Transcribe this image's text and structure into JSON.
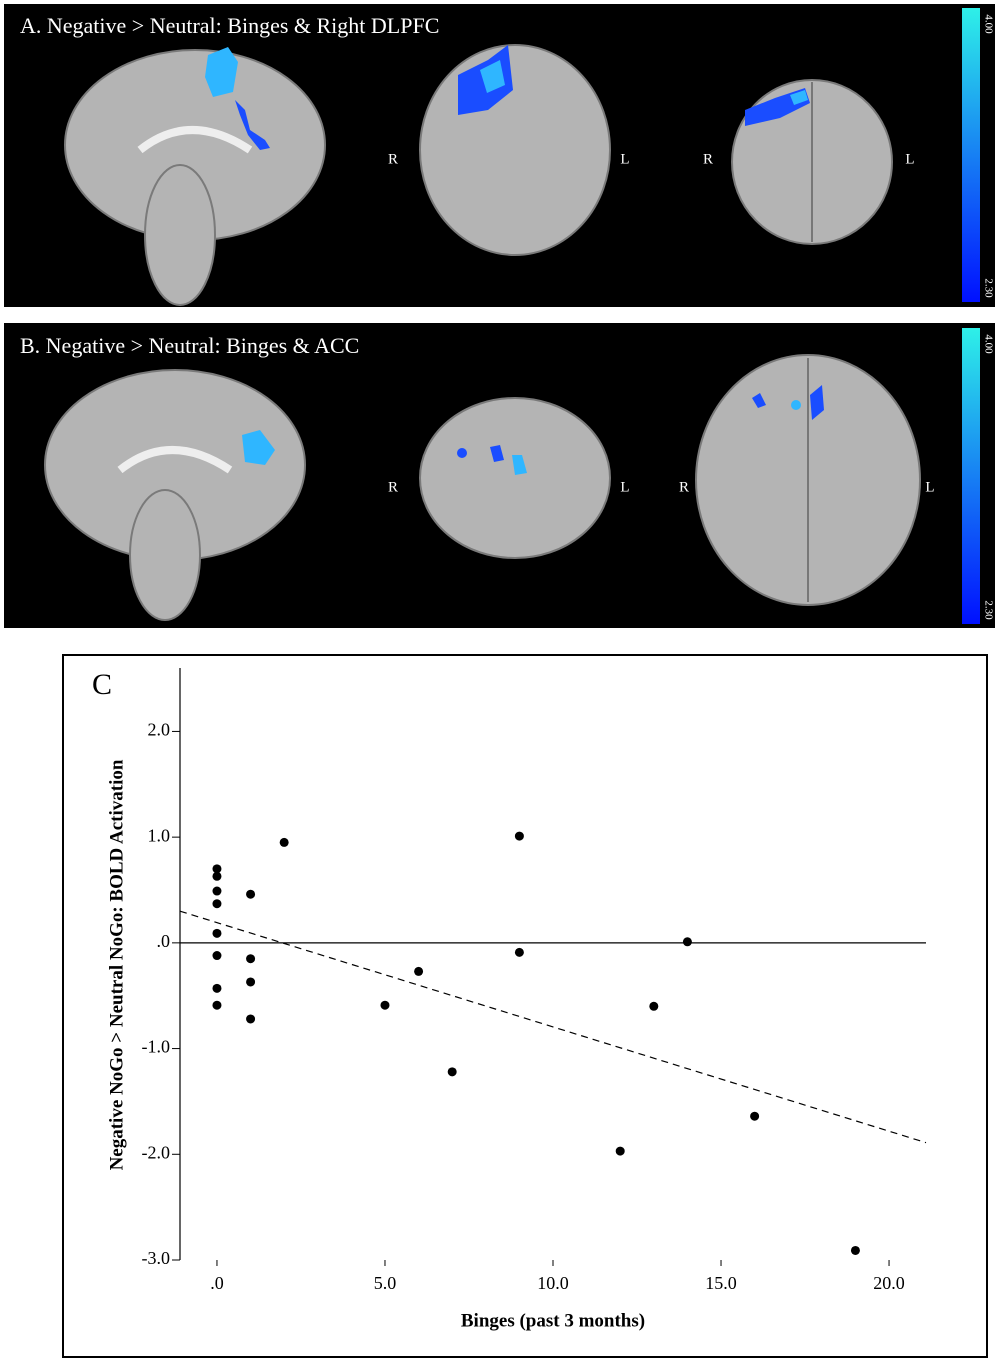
{
  "panels": [
    {
      "label": "A. Negative > Neutral: Binges & Right DLPFC",
      "orientation": [
        "R",
        "L",
        "R",
        "L"
      ],
      "colorbar": [
        "4.00",
        "2.30"
      ]
    },
    {
      "label": "B. Negative > Neutral: Binges & ACC",
      "orientation": [
        "R",
        "L",
        "R",
        "L"
      ],
      "colorbar": [
        "4.00",
        "2.30"
      ]
    }
  ],
  "chart_data": {
    "type": "scatter",
    "title": "C",
    "x_label": "Binges (past 3 months)",
    "y_label": "Negative NoGo > Neutral NoGo: BOLD Activation",
    "x": [
      0,
      0,
      0,
      0,
      0,
      0,
      0,
      0,
      1,
      1,
      1,
      1,
      2,
      9,
      9,
      5,
      6,
      7,
      12,
      13,
      14,
      16,
      19
    ],
    "values": [
      0.7,
      0.63,
      0.49,
      0.37,
      0.09,
      -0.12,
      -0.43,
      -0.59,
      0.46,
      -0.15,
      -0.37,
      -0.72,
      0.95,
      1.01,
      -0.09,
      -0.59,
      -0.27,
      -1.22,
      -1.97,
      -0.6,
      0.01,
      -1.64,
      -2.91
    ],
    "color": "#000000",
    "fit": {
      "x": [
        -1.1,
        21.1
      ],
      "values": [
        0.3,
        -1.89
      ]
    },
    "reference_y": 0,
    "xlim": [
      -1.1,
      21.1
    ],
    "ylim": [
      -3.0,
      2.6
    ],
    "xticks": [
      {
        "value": 0,
        "label": ".0"
      },
      {
        "value": 5,
        "label": "5.0"
      },
      {
        "value": 10,
        "label": "10.0"
      },
      {
        "value": 15,
        "label": "15.0"
      },
      {
        "value": 20,
        "label": "20.0"
      }
    ],
    "yticks": [
      {
        "value": -3,
        "label": "-3.0"
      },
      {
        "value": -2,
        "label": "-2.0"
      },
      {
        "value": -1,
        "label": "-1.0"
      },
      {
        "value": 0,
        "label": ".0"
      },
      {
        "value": 1,
        "label": "1.0"
      },
      {
        "value": 2,
        "label": "2.0"
      }
    ],
    "grid": false
  }
}
